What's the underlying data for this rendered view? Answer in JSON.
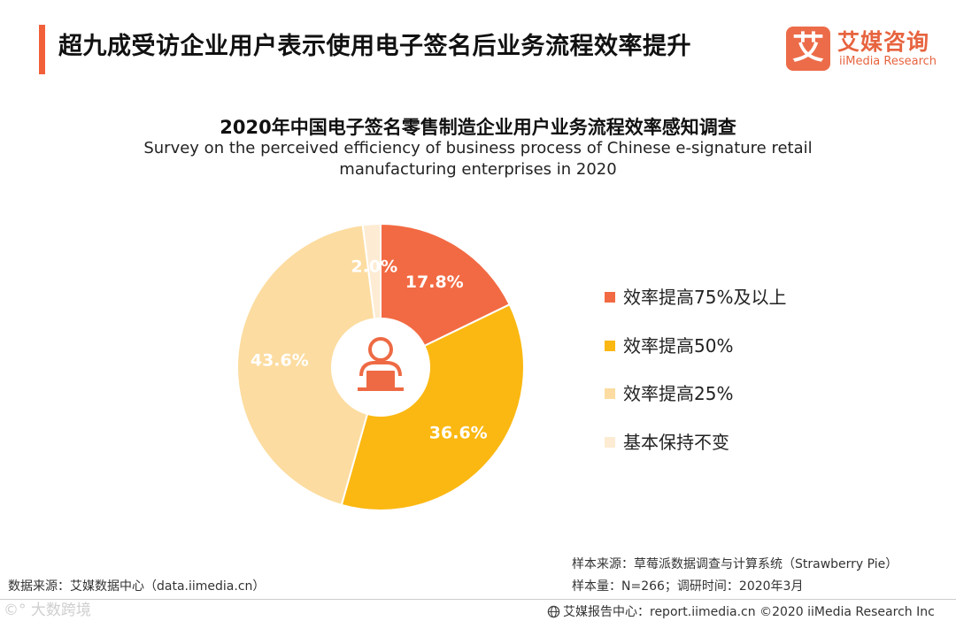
{
  "header": {
    "title": "超九成受访企业用户表示使用电子签名后业务流程效率提升"
  },
  "logo": {
    "mark": "艾",
    "cn": "艾媒咨询",
    "en": "iiMedia Research",
    "color": "#ec6c49"
  },
  "chart_data": {
    "type": "pie",
    "variant": "donut",
    "title": "2020年中国电子签名零售制造企业用户业务流程效率感知调查",
    "subtitle_line1": "Survey on the perceived efficiency of business process of Chinese e-signature retail",
    "subtitle_line2": "manufacturing enterprises in 2020",
    "center_icon": "user-laptop-icon",
    "legend_position": "right",
    "slices": [
      {
        "label": "效率提高75%及以上",
        "value": 17.8,
        "display": "17.8%",
        "color": "#f26a43"
      },
      {
        "label": "效率提高50%",
        "value": 36.6,
        "display": "36.6%",
        "color": "#fbb812"
      },
      {
        "label": "效率提高25%",
        "value": 43.6,
        "display": "43.6%",
        "color": "#fcdca0"
      },
      {
        "label": "基本保持不变",
        "value": 2.0,
        "display": "2.0%",
        "color": "#fdecd3"
      }
    ]
  },
  "footer": {
    "data_source": "数据来源：艾媒数据中心（data.iimedia.cn）",
    "sample_source": "样本来源：草莓派数据调查与计算系统（Strawberry  Pie）",
    "sample_info": "样本量：N=266；调研时间：2020年3月",
    "report_center": "艾媒报告中心：report.iimedia.cn  ©2020  iiMedia Research  Inc",
    "watermark": "©° 大数跨境"
  }
}
